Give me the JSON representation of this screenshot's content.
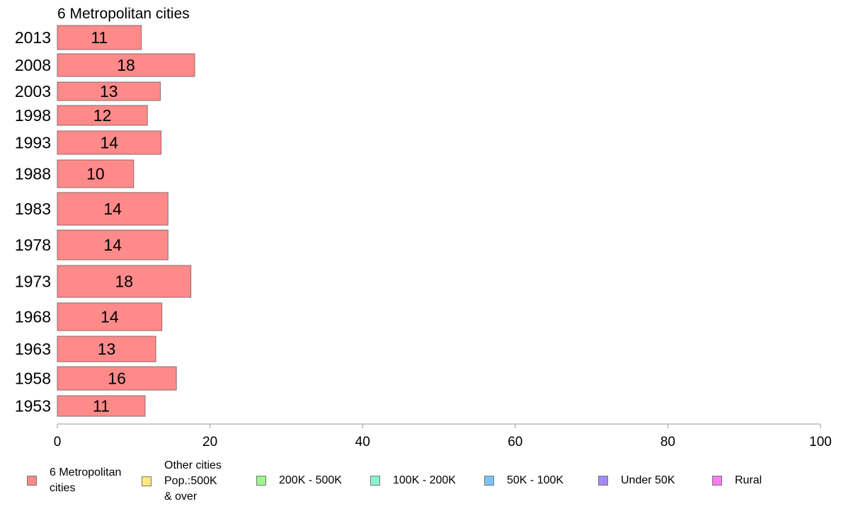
{
  "chart_data": {
    "type": "bar",
    "orientation": "horizontal",
    "title": "6 Metropolitan cities",
    "categories": [
      "2013",
      "2008",
      "2003",
      "1998",
      "1993",
      "1988",
      "1983",
      "1978",
      "1973",
      "1968",
      "1963",
      "1958",
      "1953"
    ],
    "series": [
      {
        "name": "6 Metropolitan\n cities",
        "color": "#ff8a8a",
        "values": [
          11,
          18,
          13,
          12,
          14,
          10,
          14,
          14,
          18,
          14,
          13,
          16,
          11
        ],
        "plot_values": [
          11,
          18,
          13.5,
          11.8,
          13.6,
          10,
          14.5,
          14.5,
          17.5,
          13.7,
          12.9,
          15.6,
          11.5
        ]
      }
    ],
    "x_ticks": [
      "0",
      "20",
      "40",
      "60",
      "80",
      "100"
    ],
    "xlim": [
      0,
      100
    ],
    "xlabel": "",
    "ylabel": "",
    "grid": false,
    "legend_position": "bottom",
    "legend": [
      {
        "label": "6 Metropolitan\n cities",
        "color": "#ff8a8a"
      },
      {
        "label": "Other cities\nPop.:500K\n & over",
        "color": "#ffe97a"
      },
      {
        "label": "200K - 500K",
        "color": "#9cf58a"
      },
      {
        "label": "100K - 200K",
        "color": "#86f5cf"
      },
      {
        "label": "50K - 100K",
        "color": "#7cc4f7"
      },
      {
        "label": "Under 50K",
        "color": "#a58af5"
      },
      {
        "label": "Rural",
        "color": "#f77cf0"
      }
    ]
  }
}
